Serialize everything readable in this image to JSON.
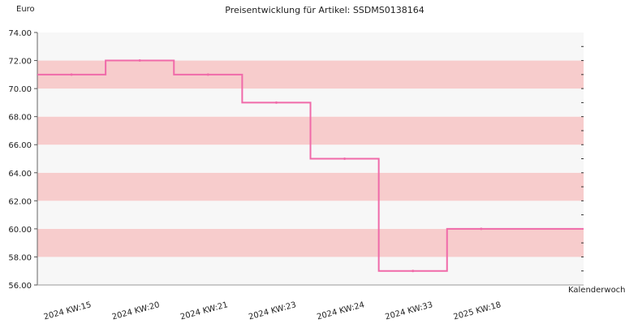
{
  "chart_data": {
    "type": "line",
    "title": "Preisentwicklung für Artikel: SSDMS0138164",
    "ylabel": "Euro",
    "xlabel": "Kalenderwoche",
    "ylim": [
      56,
      74
    ],
    "y_ticks": [
      "56.00",
      "58.00",
      "60.00",
      "62.00",
      "64.00",
      "66.00",
      "68.00",
      "70.00",
      "72.00",
      "74.00"
    ],
    "categories": [
      "2024 KW:15",
      "2024 KW:20",
      "2024 KW:21",
      "2024 KW:23",
      "2024 KW:24",
      "2024 KW:33",
      "2025 KW:18"
    ],
    "series": [
      {
        "values": [
          71,
          72,
          71,
          69,
          65,
          57,
          60
        ]
      }
    ],
    "band_colors": [
      "#f7f7f7",
      "#f7cccc"
    ],
    "line_color": "#f06aa9",
    "grid": false,
    "step": true
  }
}
